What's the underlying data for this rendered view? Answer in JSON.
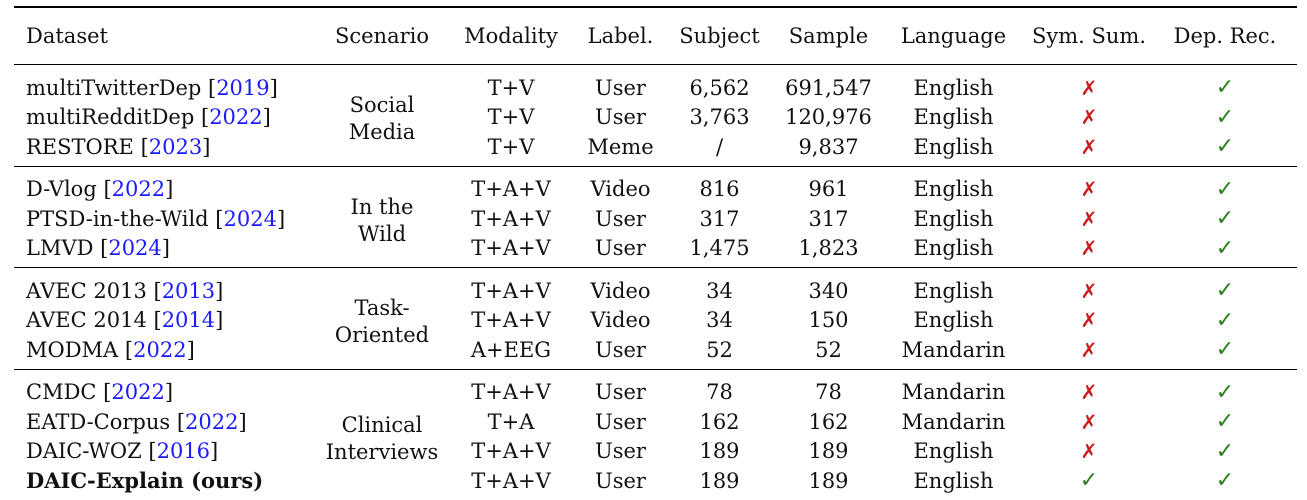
{
  "header": [
    "Dataset",
    "Scenario",
    "Modality",
    "Label.",
    "Subject",
    "Sample",
    "Language",
    "Sym. Sum.",
    "Dep. Rec."
  ],
  "groups": [
    {
      "scenario": [
        "Social",
        "Media"
      ],
      "rows": [
        {
          "name": "multiTwitterDep",
          "cite": "2019",
          "modality": "T+V",
          "label": "User",
          "subject": "6,562",
          "sample": "691,547",
          "language": "English",
          "sym": "✗",
          "dep": "✓"
        },
        {
          "name": "multiRedditDep",
          "cite": "2022",
          "modality": "T+V",
          "label": "User",
          "subject": "3,763",
          "sample": "120,976",
          "language": "English",
          "sym": "✗",
          "dep": "✓"
        },
        {
          "name": "RESTORE",
          "cite": "2023",
          "modality": "T+V",
          "label": "Meme",
          "subject": "/",
          "sample": "9,837",
          "language": "English",
          "sym": "✗",
          "dep": "✓"
        }
      ]
    },
    {
      "scenario": [
        "In the",
        "Wild"
      ],
      "rows": [
        {
          "name": "D-Vlog",
          "cite": "2022",
          "modality": "T+A+V",
          "label": "Video",
          "subject": "816",
          "sample": "961",
          "language": "English",
          "sym": "✗",
          "dep": "✓"
        },
        {
          "name": "PTSD-in-the-Wild",
          "cite": "2024",
          "modality": "T+A+V",
          "label": "User",
          "subject": "317",
          "sample": "317",
          "language": "English",
          "sym": "✗",
          "dep": "✓"
        },
        {
          "name": "LMVD",
          "cite": "2024",
          "modality": "T+A+V",
          "label": "User",
          "subject": "1,475",
          "sample": "1,823",
          "language": "English",
          "sym": "✗",
          "dep": "✓"
        }
      ]
    },
    {
      "scenario": [
        "Task-",
        "Oriented"
      ],
      "rows": [
        {
          "name": "AVEC 2013",
          "cite": "2013",
          "modality": "T+A+V",
          "label": "Video",
          "subject": "34",
          "sample": "340",
          "language": "English",
          "sym": "✗",
          "dep": "✓"
        },
        {
          "name": "AVEC 2014",
          "cite": "2014",
          "modality": "T+A+V",
          "label": "Video",
          "subject": "34",
          "sample": "150",
          "language": "English",
          "sym": "✗",
          "dep": "✓"
        },
        {
          "name": "MODMA",
          "cite": "2022",
          "modality": "A+EEG",
          "label": "User",
          "subject": "52",
          "sample": "52",
          "language": "Mandarin",
          "sym": "✗",
          "dep": "✓"
        }
      ]
    },
    {
      "scenario": [
        "Clinical",
        "Interviews"
      ],
      "rows": [
        {
          "name": "CMDC",
          "cite": "2022",
          "modality": "T+A+V",
          "label": "User",
          "subject": "78",
          "sample": "78",
          "language": "Mandarin",
          "sym": "✗",
          "dep": "✓"
        },
        {
          "name": "EATD-Corpus",
          "cite": "2022",
          "modality": "T+A",
          "label": "User",
          "subject": "162",
          "sample": "162",
          "language": "Mandarin",
          "sym": "✗",
          "dep": "✓"
        },
        {
          "name": "DAIC-WOZ",
          "cite": "2016",
          "modality": "T+A+V",
          "label": "User",
          "subject": "189",
          "sample": "189",
          "language": "English",
          "sym": "✗",
          "dep": "✓"
        },
        {
          "name": "DAIC-Explain (ours)",
          "cite": "",
          "modality": "T+A+V",
          "label": "User",
          "subject": "189",
          "sample": "189",
          "language": "English",
          "sym": "✓",
          "dep": "✓",
          "bold": true
        }
      ]
    }
  ],
  "colors": {
    "cross": "#d01919",
    "check": "#2e7d1e",
    "cite": "#1a1aff"
  }
}
